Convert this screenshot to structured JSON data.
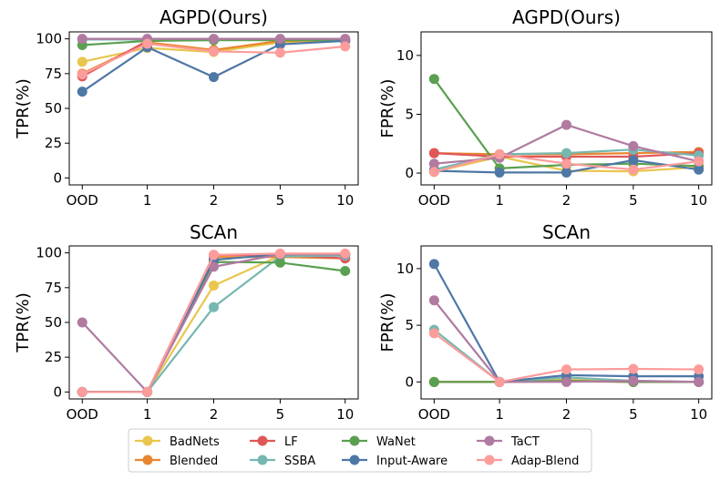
{
  "chart_data": [
    {
      "type": "line",
      "title": "AGPD(Ours)",
      "xlabel": "",
      "ylabel": "TPR(%)",
      "categories": [
        "OOD",
        "1",
        "2",
        "5",
        "10"
      ],
      "ylim": [
        -5,
        105
      ],
      "yticks": [
        0,
        25,
        50,
        75,
        100
      ],
      "series": [
        {
          "name": "BadNets",
          "values": [
            83.5,
            93.5,
            90.5,
            97.5,
            99
          ]
        },
        {
          "name": "Blended",
          "values": [
            75,
            97.5,
            92,
            98.5,
            99
          ]
        },
        {
          "name": "LF",
          "values": [
            73,
            98.5,
            99.5,
            99.5,
            99.5
          ]
        },
        {
          "name": "SSBA",
          "values": [
            99.5,
            99.5,
            99.5,
            99.5,
            99.5
          ]
        },
        {
          "name": "WaNet",
          "values": [
            95.5,
            98.5,
            99,
            99,
            99
          ]
        },
        {
          "name": "Input-Aware",
          "values": [
            62,
            94,
            72.5,
            96,
            98.5
          ]
        },
        {
          "name": "TaCT",
          "values": [
            100,
            100,
            100,
            100,
            100
          ]
        },
        {
          "name": "Adap-Blend",
          "values": [
            74.5,
            96.5,
            91,
            90,
            94.5
          ]
        }
      ]
    },
    {
      "type": "line",
      "title": "AGPD(Ours)",
      "xlabel": "",
      "ylabel": "FPR(%)",
      "categories": [
        "OOD",
        "1",
        "2",
        "5",
        "10"
      ],
      "ylim": [
        -1,
        12
      ],
      "yticks": [
        0,
        5,
        10
      ],
      "series": [
        {
          "name": "BadNets",
          "values": [
            0.1,
            1.4,
            0.2,
            0.15,
            0.5
          ]
        },
        {
          "name": "Blended",
          "values": [
            1.7,
            1.6,
            1.6,
            1.7,
            1.8
          ]
        },
        {
          "name": "LF",
          "values": [
            1.7,
            1.4,
            1.4,
            1.4,
            1.7
          ]
        },
        {
          "name": "SSBA",
          "values": [
            0.3,
            1.6,
            1.7,
            2.0,
            1.5
          ]
        },
        {
          "name": "WaNet",
          "values": [
            8.0,
            0.4,
            0.7,
            0.8,
            0.6
          ]
        },
        {
          "name": "Input-Aware",
          "values": [
            0.2,
            0.05,
            0.05,
            1.1,
            0.3
          ]
        },
        {
          "name": "TaCT",
          "values": [
            0.8,
            1.3,
            4.1,
            2.3,
            1.0
          ]
        },
        {
          "name": "Adap-Blend",
          "values": [
            0.1,
            1.6,
            0.8,
            0.3,
            1.0
          ]
        }
      ]
    },
    {
      "type": "line",
      "title": "SCAn",
      "xlabel": "",
      "ylabel": "TPR(%)",
      "categories": [
        "OOD",
        "1",
        "2",
        "5",
        "10"
      ],
      "ylim": [
        -5,
        105
      ],
      "yticks": [
        0,
        25,
        50,
        75,
        100
      ],
      "series": [
        {
          "name": "BadNets",
          "values": [
            0,
            0,
            76.5,
            98,
            98
          ]
        },
        {
          "name": "Blended",
          "values": [
            0,
            0,
            97,
            97,
            96
          ]
        },
        {
          "name": "LF",
          "values": [
            0,
            0,
            98.5,
            98.5,
            96
          ]
        },
        {
          "name": "SSBA",
          "values": [
            0,
            0,
            61,
            97.5,
            98
          ]
        },
        {
          "name": "WaNet",
          "values": [
            0,
            0,
            93.5,
            93,
            87
          ]
        },
        {
          "name": "Input-Aware",
          "values": [
            0,
            0,
            95,
            99,
            99
          ]
        },
        {
          "name": "TaCT",
          "values": [
            50,
            0,
            90,
            99,
            99
          ]
        },
        {
          "name": "Adap-Blend",
          "values": [
            0,
            0,
            98.5,
            99.5,
            99.5
          ]
        }
      ]
    },
    {
      "type": "line",
      "title": "SCAn",
      "xlabel": "",
      "ylabel": "FPR(%)",
      "categories": [
        "OOD",
        "1",
        "2",
        "5",
        "10"
      ],
      "ylim": [
        -1.5,
        12
      ],
      "yticks": [
        0,
        5,
        10
      ],
      "series": [
        {
          "name": "BadNets",
          "values": [
            0,
            0,
            0.2,
            0,
            0
          ]
        },
        {
          "name": "Blended",
          "values": [
            0,
            0,
            0.1,
            0,
            0
          ]
        },
        {
          "name": "LF",
          "values": [
            0,
            0,
            0.05,
            0,
            0
          ]
        },
        {
          "name": "SSBA",
          "values": [
            4.6,
            0,
            0.4,
            0.1,
            0
          ]
        },
        {
          "name": "WaNet",
          "values": [
            0,
            0,
            0.1,
            0,
            0
          ]
        },
        {
          "name": "Input-Aware",
          "values": [
            10.4,
            0,
            0.6,
            0.5,
            0.5
          ]
        },
        {
          "name": "TaCT",
          "values": [
            7.2,
            0,
            0,
            0.1,
            0
          ]
        },
        {
          "name": "Adap-Blend",
          "values": [
            4.3,
            0,
            1.1,
            1.15,
            1.1
          ]
        }
      ]
    }
  ],
  "legend": {
    "placement": "bottom-center",
    "entries": [
      "BadNets",
      "Blended",
      "LF",
      "SSBA",
      "WaNet",
      "Input-Aware",
      "TaCT",
      "Adap-Blend"
    ]
  },
  "colors": {
    "BadNets": "#e9c64e",
    "Blended": "#e9862f",
    "LF": "#e05757",
    "SSBA": "#76b7b1",
    "WaNet": "#5aa051",
    "Input-Aware": "#4f77a6",
    "TaCT": "#b07aa1",
    "Adap-Blend": "#fc9c9b"
  }
}
